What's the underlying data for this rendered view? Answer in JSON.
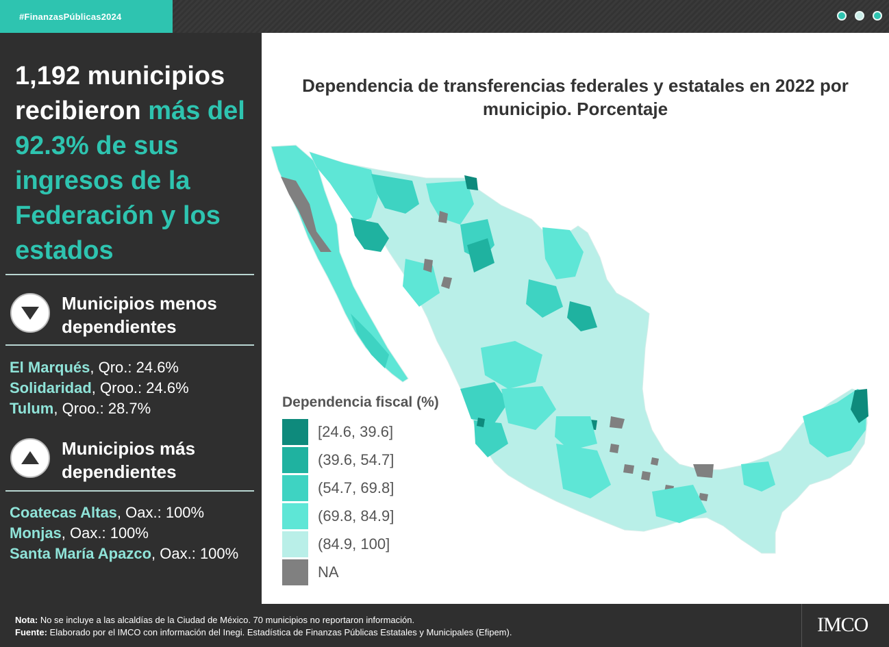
{
  "header": {
    "hashtag": "#FinanzasPúblicas2024"
  },
  "sidebar": {
    "headline_part1": "1,192 municipios recibieron ",
    "headline_accent": "más del 92.3% de sus ingresos de la Federación y los estados",
    "less_title": "Municipios menos dependientes",
    "less": [
      {
        "name": "El Marqués",
        "rest": ", Qro.: 24.6%"
      },
      {
        "name": "Solidaridad",
        "rest": ", Qroo.: 24.6%"
      },
      {
        "name": "Tulum",
        "rest": ", Qroo.: 28.7%"
      }
    ],
    "more_title": "Municipios más dependientes",
    "more": [
      {
        "name": "Coatecas Altas",
        "rest": ", Oax.: 100%"
      },
      {
        "name": "Monjas",
        "rest": ", Oax.: 100%"
      },
      {
        "name": "Santa María Apazco",
        "rest": ", Oax.: 100%"
      }
    ]
  },
  "chart": {
    "title": "Dependencia de transferencias federales y estatales en 2022 por municipio. Porcentaje",
    "legend_title": "Dependencia fiscal (%)",
    "legend": [
      {
        "label": "[24.6, 39.6]",
        "color": "#0e8a7c"
      },
      {
        "label": "(39.6, 54.7]",
        "color": "#1fb2a0"
      },
      {
        "label": "(54.7, 69.8]",
        "color": "#3ed3c2"
      },
      {
        "label": "(69.8, 84.9]",
        "color": "#5ee6d6"
      },
      {
        "label": "(84.9, 100]",
        "color": "#b9efe8"
      },
      {
        "label": "NA",
        "color": "#808080"
      }
    ]
  },
  "footer": {
    "note_label": "Nota:",
    "note_text": " No se incluye a las alcaldías de la Ciudad de México. 70 municipios no reportaron información.",
    "source_label": "Fuente:",
    "source_text": " Elaborado por el IMCO con información del Inegi. Estadística de Finanzas Públicas Estatales y Municipales (Efipem).",
    "logo": "IMCO"
  }
}
